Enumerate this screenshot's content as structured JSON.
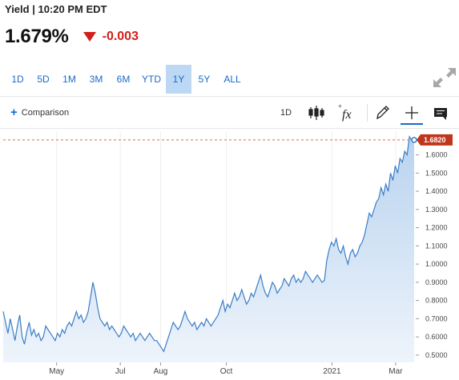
{
  "header": {
    "label": "Yield",
    "separator": " | ",
    "time": "10:20 PM EDT"
  },
  "quote": {
    "price": "1.679%",
    "change": "-0.003",
    "direction": "down",
    "colors": {
      "down": "#d0201b"
    }
  },
  "ranges": {
    "items": [
      "1D",
      "5D",
      "1M",
      "3M",
      "6M",
      "YTD",
      "1Y",
      "5Y",
      "ALL"
    ],
    "active": "1Y"
  },
  "toolbar": {
    "comparison_label": "Comparison",
    "interval_label": "1D",
    "icons": [
      "candlestick-icon",
      "function-icon",
      "draw-pencil-icon",
      "crosshair-icon",
      "annotation-icon",
      "expand-icon"
    ]
  },
  "chart_data": {
    "type": "area",
    "last_value_label": "1.6820",
    "last_value": 1.682,
    "y_ticks": [
      "1.6000",
      "1.5000",
      "1.4000",
      "1.3000",
      "1.2000",
      "1.1000",
      "1.0000",
      "0.9000",
      "0.8000",
      "0.7000",
      "0.6000",
      "0.5000"
    ],
    "ylim": [
      0.46,
      1.73
    ],
    "x_ticks": [
      {
        "label": "May",
        "t": 0.13
      },
      {
        "label": "Jul",
        "t": 0.285
      },
      {
        "label": "Aug",
        "t": 0.383
      },
      {
        "label": "Oct",
        "t": 0.543
      },
      {
        "label": "2021",
        "t": 0.8
      },
      {
        "label": "Mar",
        "t": 0.955
      }
    ],
    "values": [
      0.74,
      0.68,
      0.62,
      0.7,
      0.64,
      0.58,
      0.66,
      0.72,
      0.6,
      0.56,
      0.63,
      0.68,
      0.61,
      0.64,
      0.6,
      0.62,
      0.58,
      0.6,
      0.66,
      0.64,
      0.62,
      0.6,
      0.58,
      0.62,
      0.6,
      0.64,
      0.62,
      0.66,
      0.68,
      0.66,
      0.7,
      0.74,
      0.7,
      0.72,
      0.68,
      0.7,
      0.74,
      0.82,
      0.9,
      0.84,
      0.76,
      0.7,
      0.68,
      0.66,
      0.68,
      0.64,
      0.66,
      0.64,
      0.62,
      0.6,
      0.62,
      0.66,
      0.64,
      0.62,
      0.6,
      0.62,
      0.58,
      0.6,
      0.62,
      0.6,
      0.58,
      0.6,
      0.62,
      0.6,
      0.58,
      0.58,
      0.56,
      0.54,
      0.52,
      0.56,
      0.6,
      0.64,
      0.68,
      0.66,
      0.64,
      0.66,
      0.7,
      0.74,
      0.7,
      0.68,
      0.66,
      0.68,
      0.64,
      0.66,
      0.68,
      0.66,
      0.7,
      0.68,
      0.66,
      0.68,
      0.7,
      0.72,
      0.76,
      0.8,
      0.74,
      0.78,
      0.76,
      0.8,
      0.84,
      0.8,
      0.82,
      0.86,
      0.82,
      0.78,
      0.8,
      0.84,
      0.82,
      0.86,
      0.9,
      0.94,
      0.88,
      0.84,
      0.82,
      0.86,
      0.9,
      0.88,
      0.84,
      0.86,
      0.88,
      0.92,
      0.9,
      0.88,
      0.92,
      0.94,
      0.9,
      0.92,
      0.9,
      0.92,
      0.96,
      0.94,
      0.92,
      0.9,
      0.92,
      0.94,
      0.92,
      0.9,
      0.91,
      1.02,
      1.08,
      1.12,
      1.1,
      1.14,
      1.08,
      1.06,
      1.1,
      1.04,
      1.0,
      1.06,
      1.08,
      1.04,
      1.06,
      1.1,
      1.12,
      1.16,
      1.22,
      1.28,
      1.26,
      1.3,
      1.34,
      1.36,
      1.42,
      1.38,
      1.44,
      1.4,
      1.5,
      1.46,
      1.54,
      1.5,
      1.58,
      1.56,
      1.62,
      1.6,
      1.7,
      1.68,
      1.682
    ],
    "colors": {
      "line": "#3b7ec6",
      "fill_top": "#b9d3ef",
      "fill_bottom": "#eef4fb",
      "last_tag": "#c0361c",
      "reference_line": "#e06a4f"
    }
  }
}
